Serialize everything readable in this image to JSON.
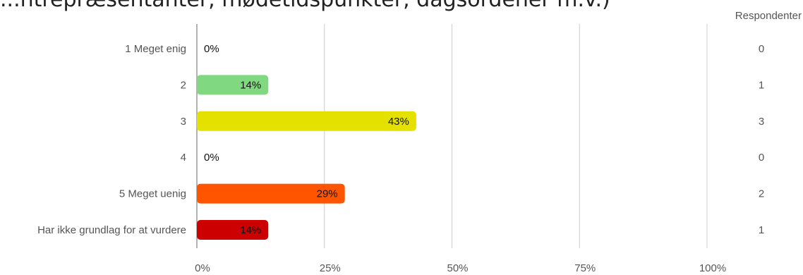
{
  "title": "...ntrepræsentanter, mødetidspunkter, dagsordener m.v.)",
  "respondents_header": "Respondenter",
  "chart_data": {
    "type": "bar",
    "orientation": "horizontal",
    "title": "",
    "xlabel": "",
    "ylabel": "",
    "xlim": [
      0,
      100
    ],
    "x_ticks": [
      "0%",
      "25%",
      "50%",
      "75%",
      "100%"
    ],
    "grid": true,
    "categories": [
      "1 Meget enig",
      "2",
      "3",
      "4",
      "5 Meget uenig",
      "Har ikke grundlag for at vurdere"
    ],
    "values": [
      0,
      14,
      43,
      0,
      29,
      14
    ],
    "value_labels": [
      "0%",
      "14%",
      "43%",
      "0%",
      "29%",
      "14%"
    ],
    "respondents": [
      "0",
      "1",
      "3",
      "0",
      "2",
      "1"
    ],
    "colors": [
      "#2e7d32",
      "#80d880",
      "#e4e000",
      "#f09a00",
      "#ff5500",
      "#cc0000"
    ]
  }
}
